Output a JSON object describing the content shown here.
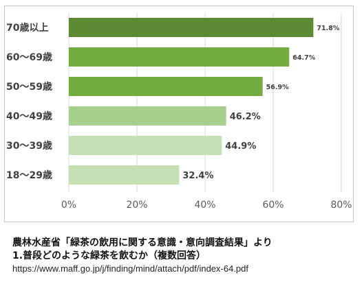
{
  "chart_data": {
    "type": "bar",
    "orientation": "horizontal",
    "categories": [
      "70歳以上",
      "60〜69歳",
      "50〜59歳",
      "40〜49歳",
      "30〜39歳",
      "18〜29歳"
    ],
    "values": [
      71.8,
      64.7,
      56.9,
      46.2,
      44.9,
      32.4
    ],
    "value_labels": [
      "71.8%",
      "64.7%",
      "56.9%",
      "46.2%",
      "44.9%",
      "32.4%"
    ],
    "bar_colors": [
      "#5b8a32",
      "#71ad3f",
      "#71ad3f",
      "#a8d08d",
      "#c5e0b3",
      "#c5e0b3"
    ],
    "xlim": [
      0,
      80
    ],
    "xticks": [
      0,
      20,
      40,
      60,
      80
    ],
    "xtick_labels": [
      "0%",
      "20%",
      "40%",
      "60%",
      "80%"
    ],
    "grid": true,
    "title": "",
    "xlabel": "",
    "ylabel": ""
  },
  "caption": {
    "line1": "農林水産省「緑茶の飲用に関する意識・意向調査結果」より",
    "line2": "1.普段どのような緑茶を飲むか（複数回答）",
    "url": "https://www.maff.go.jp/j/finding/mind/attach/pdf/index-64.pdf"
  }
}
